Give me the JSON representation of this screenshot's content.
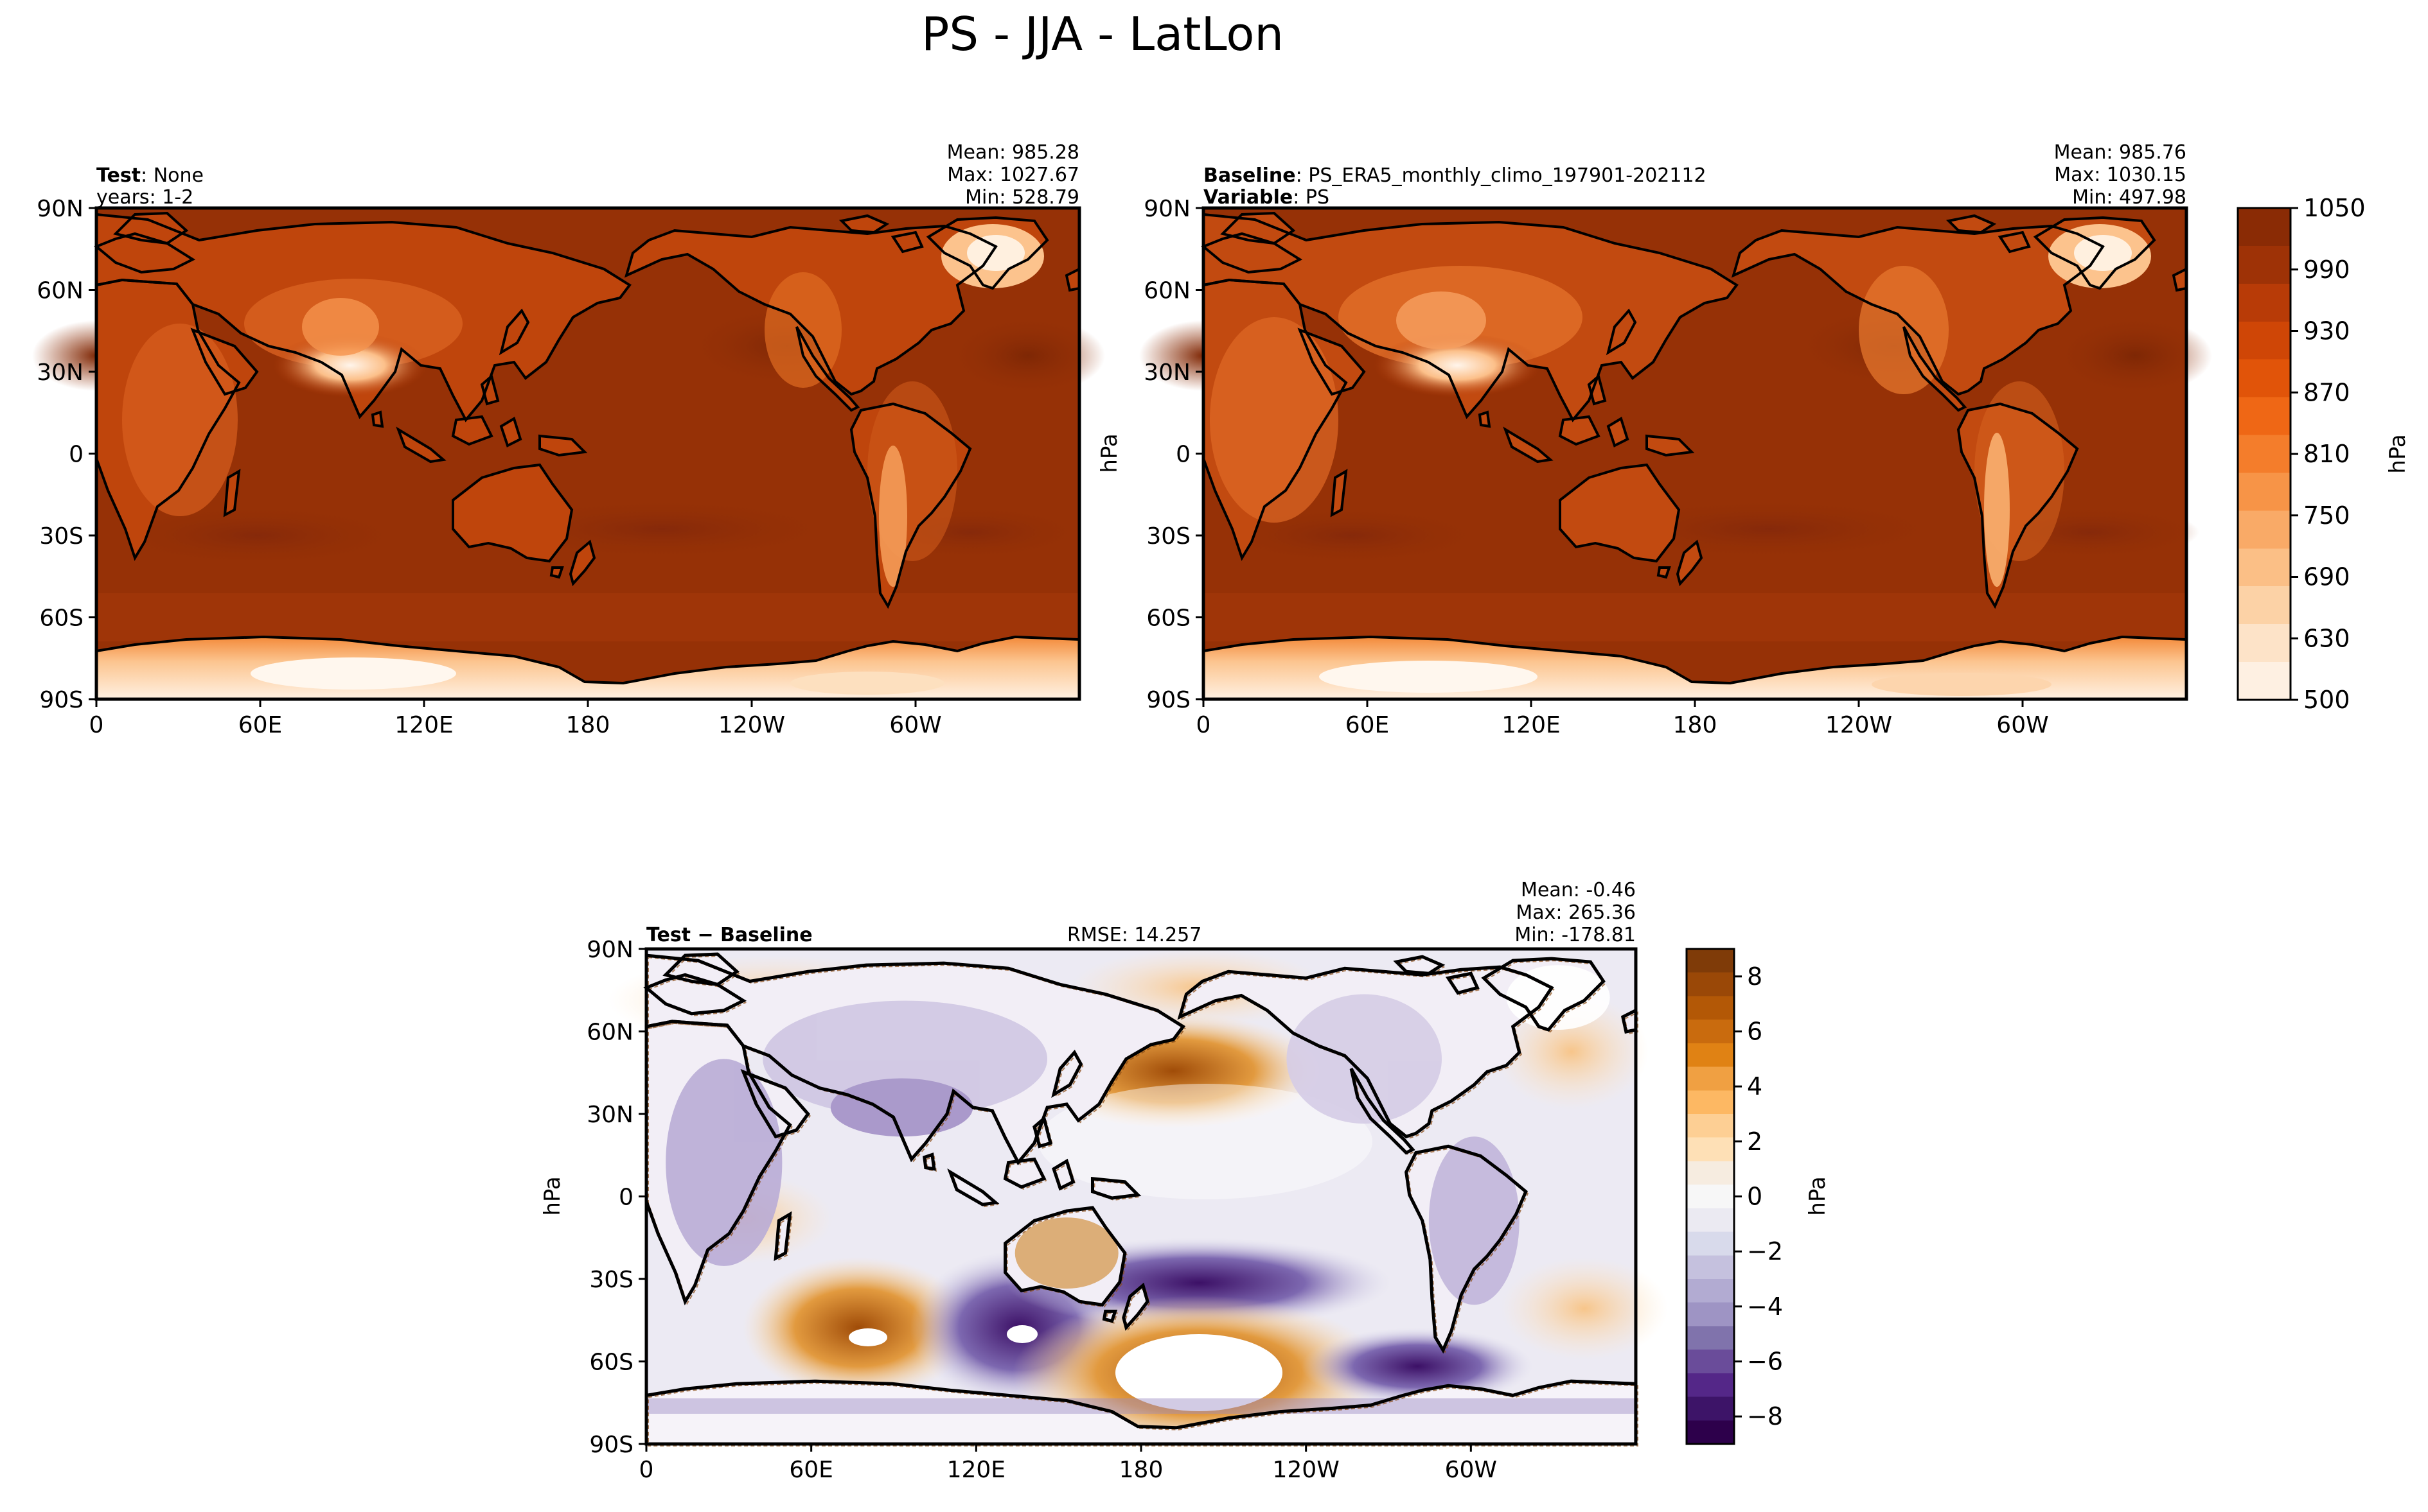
{
  "title": "PS - JJA - LatLon",
  "x_ticks": [
    "0",
    "60E",
    "120E",
    "180",
    "120W",
    "60W"
  ],
  "y_ticks": [
    "90N",
    "60N",
    "30N",
    "0",
    "30S",
    "60S",
    "90S"
  ],
  "panels": [
    {
      "id": "test",
      "left_line1_bold": "Test",
      "left_line1_rest": "None",
      "left_line2": "years: 1-2",
      "left_line2_bold": "",
      "left_line2_rest": "",
      "stats": [
        "Mean: 985.28",
        "Max: 1027.67",
        "Min: 528.79"
      ],
      "unit_label": ""
    },
    {
      "id": "baseline",
      "left_line1_bold": "Baseline",
      "left_line1_rest": "PS_ERA5_monthly_climo_197901-202112",
      "left_line2": "",
      "left_line2_bold": "Variable",
      "left_line2_rest": "PS",
      "stats": [
        "Mean: 985.76",
        "Max: 1030.15",
        "Min: 497.98"
      ],
      "unit_label": "hPa"
    },
    {
      "id": "diff",
      "left_line1_bold": "Test − Baseline",
      "rmse": "RMSE: 14.257",
      "stats": [
        "Mean: -0.46",
        "Max: 265.36",
        "Min: -178.81"
      ],
      "unit_label": "hPa"
    }
  ],
  "colorbars": [
    {
      "id": "ps-colorbar",
      "label": "hPa",
      "ticks": [
        "1050",
        "990",
        "930",
        "870",
        "810",
        "750",
        "690",
        "630",
        "500"
      ],
      "colors": [
        "#8a2b05",
        "#9e3206",
        "#b83b07",
        "#cf4606",
        "#e15409",
        "#ef6715",
        "#f47d2b",
        "#f79447",
        "#f9aa67",
        "#fbbf86",
        "#fcd2a6",
        "#fde3c8",
        "#fef0e2"
      ],
      "value_range": [
        500,
        1050
      ]
    },
    {
      "id": "diff-colorbar",
      "label": "hPa",
      "ticks": [
        "8",
        "6",
        "4",
        "2",
        "0",
        "−2",
        "−4",
        "−6",
        "−8"
      ],
      "colors": [
        "#7f3b08",
        "#9a4807",
        "#b35806",
        "#c96b0e",
        "#e08214",
        "#f0a042",
        "#fdb863",
        "#fdcf94",
        "#fee0b6",
        "#f6ece0",
        "#f7f7f7",
        "#ebeaf2",
        "#d8daeb",
        "#c5c1de",
        "#b2abd2",
        "#9e94c4",
        "#8073ac",
        "#6a4c9a",
        "#542788",
        "#3d1468",
        "#2d004b"
      ],
      "value_range": [
        -9,
        9
      ]
    }
  ]
}
